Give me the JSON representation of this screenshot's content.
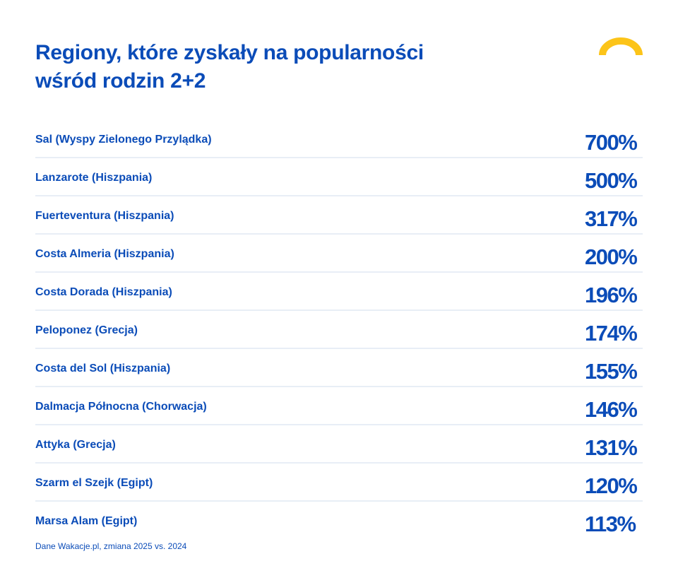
{
  "title_line1": "Regiony, które zyskały na popularności",
  "title_line2": "wśród rodzin 2+2",
  "footer": "Dane Wakacje.pl, zmiana 2025 vs. 2024",
  "colors": {
    "text": "#0b4cb8",
    "divider": "#e8eef6",
    "logo_arc": "#fcc419"
  },
  "logo_icon": "yellow-arc-icon",
  "chart_data": {
    "type": "table",
    "columns": [
      "region",
      "change"
    ],
    "rows": [
      {
        "label": "Sal (Wyspy Zielonego Przylądka)",
        "value": "700%"
      },
      {
        "label": "Lanzarote (Hiszpania)",
        "value": "500%"
      },
      {
        "label": "Fuerteventura (Hiszpania)",
        "value": "317%"
      },
      {
        "label": "Costa Almeria (Hiszpania)",
        "value": "200%"
      },
      {
        "label": "Costa Dorada (Hiszpania)",
        "value": "196%"
      },
      {
        "label": "Peloponez (Grecja)",
        "value": "174%"
      },
      {
        "label": "Costa del Sol (Hiszpania)",
        "value": "155%"
      },
      {
        "label": "Dalmacja Północna (Chorwacja)",
        "value": "146%"
      },
      {
        "label": "Attyka (Grecja)",
        "value": "131%"
      },
      {
        "label": "Szarm el Szejk (Egipt)",
        "value": "120%"
      },
      {
        "label": "Marsa Alam (Egipt)",
        "value": "113%"
      }
    ]
  }
}
